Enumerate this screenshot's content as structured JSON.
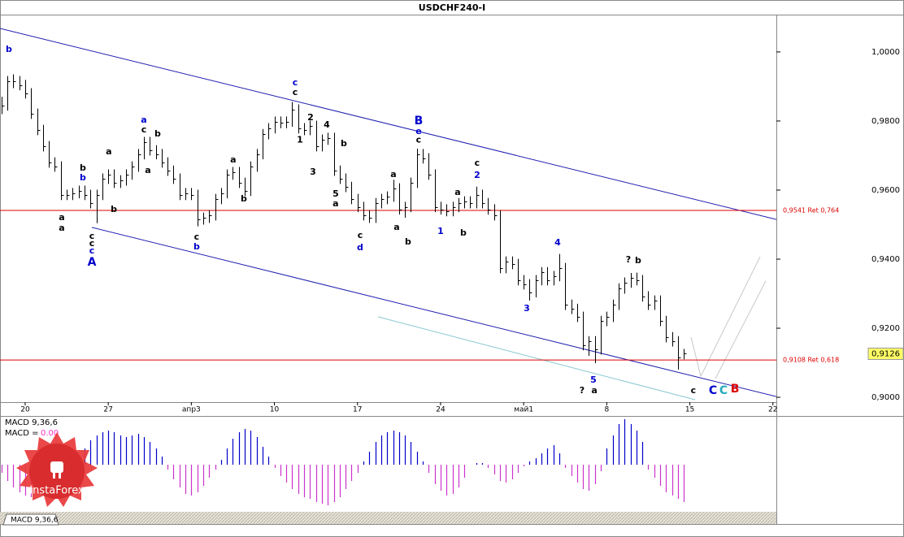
{
  "chart_data": {
    "type": "ohlc",
    "title": "USDCHF240-I",
    "xlim": [
      -1.12,
      64.29
    ],
    "xticks": [
      {
        "value": 1,
        "label": "20"
      },
      {
        "value": 8,
        "label": "27"
      },
      {
        "value": 15,
        "label": "апр3"
      },
      {
        "value": 22,
        "label": "10"
      },
      {
        "value": 29,
        "label": "17"
      },
      {
        "value": 36,
        "label": "24"
      },
      {
        "value": 43,
        "label": "май1"
      },
      {
        "value": 50,
        "label": "8"
      },
      {
        "value": 57,
        "label": "15"
      },
      {
        "value": 64,
        "label": "22"
      }
    ],
    "ylim": [
      0.8986,
      1.0108
    ],
    "yticks": [
      {
        "value": 0.9,
        "label": "0,9000"
      },
      {
        "value": 0.92,
        "label": "0,9200"
      },
      {
        "value": 0.94,
        "label": "0,9400"
      },
      {
        "value": 0.96,
        "label": "0,9600"
      },
      {
        "value": 0.98,
        "label": "0,9800"
      },
      {
        "value": 1.0,
        "label": "1,0000"
      }
    ],
    "color": "#000000",
    "x": [
      -1,
      -0.5,
      0,
      0.5,
      1,
      1.5,
      2,
      2.5,
      3,
      3.5,
      4,
      4.5,
      5,
      5.5,
      6,
      6.5,
      7,
      7.5,
      8,
      8.5,
      9,
      9.5,
      10,
      10.5,
      11,
      11.5,
      12,
      12.5,
      13,
      13.5,
      14,
      14.5,
      15,
      15.5,
      16,
      16.5,
      17,
      17.5,
      18,
      18.5,
      19,
      19.5,
      20,
      20.5,
      21,
      21.5,
      22,
      22.5,
      23,
      23.5,
      24,
      24.5,
      25,
      25.5,
      26,
      26.5,
      27,
      27.5,
      28,
      28.5,
      29,
      29.5,
      30,
      30.5,
      31,
      31.5,
      32,
      32.5,
      33,
      33.5,
      34,
      34.5,
      35,
      35.5,
      36,
      36.5,
      37,
      37.5,
      38,
      38.5,
      39,
      39.5,
      40,
      40.5,
      41,
      41.5,
      42,
      42.5,
      43,
      43.5,
      44,
      44.5,
      45,
      45.5,
      46,
      46.5,
      47,
      47.5,
      48,
      48.5,
      49,
      49.5,
      50,
      50.5,
      51,
      51.5,
      52,
      52.5,
      53,
      53.5,
      54,
      54.5,
      55,
      55.5,
      56,
      56.5
    ],
    "high": [
      0.987,
      0.993,
      0.9935,
      0.993,
      0.9919,
      0.9895,
      0.9836,
      0.9789,
      0.9742,
      0.9695,
      0.9683,
      0.9601,
      0.9606,
      0.9613,
      0.9613,
      0.9601,
      0.9601,
      0.9648,
      0.966,
      0.966,
      0.9643,
      0.966,
      0.9683,
      0.9719,
      0.9754,
      0.9754,
      0.973,
      0.9719,
      0.9695,
      0.9671,
      0.9648,
      0.9606,
      0.9606,
      0.9601,
      0.9535,
      0.9542,
      0.9589,
      0.9606,
      0.966,
      0.9667,
      0.9667,
      0.9636,
      0.9683,
      0.9719,
      0.9777,
      0.9794,
      0.9813,
      0.9813,
      0.9813,
      0.9855,
      0.9848,
      0.9794,
      0.9801,
      0.9801,
      0.9761,
      0.9766,
      0.9766,
      0.9671,
      0.9648,
      0.9624,
      0.9589,
      0.9566,
      0.9542,
      0.9577,
      0.9589,
      0.9596,
      0.963,
      0.962,
      0.9566,
      0.9636,
      0.972,
      0.9719,
      0.9707,
      0.966,
      0.9566,
      0.9559,
      0.9566,
      0.9577,
      0.9582,
      0.9582,
      0.961,
      0.9601,
      0.9577,
      0.9559,
      0.9542,
      0.9408,
      0.9408,
      0.9401,
      0.9354,
      0.9342,
      0.9354,
      0.9377,
      0.9377,
      0.9366,
      0.9415,
      0.9389,
      0.9283,
      0.9271,
      0.9248,
      0.9177,
      0.9177,
      0.9236,
      0.9248,
      0.9283,
      0.933,
      0.9347,
      0.936,
      0.9361,
      0.9354,
      0.9307,
      0.9295,
      0.9295,
      0.9236,
      0.9189,
      0.9177,
      0.914
    ],
    "low": [
      0.982,
      0.983,
      0.9895,
      0.9889,
      0.9865,
      0.9806,
      0.9759,
      0.9712,
      0.9665,
      0.9653,
      0.9571,
      0.9571,
      0.9571,
      0.9576,
      0.9571,
      0.9547,
      0.9504,
      0.9571,
      0.9618,
      0.9606,
      0.9606,
      0.9613,
      0.963,
      0.9653,
      0.9689,
      0.97,
      0.9689,
      0.9665,
      0.9641,
      0.9618,
      0.9571,
      0.9571,
      0.9571,
      0.9495,
      0.95,
      0.9505,
      0.9512,
      0.9559,
      0.9576,
      0.963,
      0.9606,
      0.9583,
      0.9583,
      0.9653,
      0.9689,
      0.9747,
      0.9764,
      0.9779,
      0.9779,
      0.9783,
      0.9764,
      0.9759,
      0.9759,
      0.9712,
      0.9712,
      0.9731,
      0.9641,
      0.9618,
      0.9594,
      0.9559,
      0.9536,
      0.9512,
      0.9505,
      0.9505,
      0.9547,
      0.9559,
      0.9566,
      0.9529,
      0.952,
      0.9536,
      0.9606,
      0.9677,
      0.963,
      0.9536,
      0.9529,
      0.9524,
      0.9524,
      0.9536,
      0.9547,
      0.9547,
      0.9547,
      0.9547,
      0.9529,
      0.9512,
      0.9359,
      0.9359,
      0.9371,
      0.9324,
      0.9312,
      0.928,
      0.9289,
      0.9324,
      0.9324,
      0.9324,
      0.9336,
      0.9253,
      0.9241,
      0.9218,
      0.9136,
      0.912,
      0.9099,
      0.9124,
      0.9206,
      0.9218,
      0.9253,
      0.93,
      0.9317,
      0.9324,
      0.9277,
      0.9253,
      0.9253,
      0.9206,
      0.9159,
      0.9147,
      0.908,
      0.911
    ],
    "close": [
      0.9845,
      0.9915,
      0.9915,
      0.9904,
      0.988,
      0.9821,
      0.9774,
      0.9727,
      0.968,
      0.9668,
      0.9586,
      0.9586,
      0.9591,
      0.9598,
      0.9586,
      0.9562,
      0.9586,
      0.9633,
      0.9645,
      0.9621,
      0.9628,
      0.9645,
      0.9668,
      0.9704,
      0.9739,
      0.9715,
      0.9704,
      0.968,
      0.9656,
      0.9633,
      0.9586,
      0.9591,
      0.9586,
      0.9515,
      0.952,
      0.9527,
      0.9574,
      0.9591,
      0.9645,
      0.9652,
      0.9621,
      0.9598,
      0.9668,
      0.9704,
      0.9762,
      0.9779,
      0.9798,
      0.9794,
      0.9798,
      0.9833,
      0.9779,
      0.9774,
      0.9786,
      0.9727,
      0.9746,
      0.9751,
      0.9656,
      0.9633,
      0.9609,
      0.9574,
      0.9551,
      0.9527,
      0.952,
      0.9562,
      0.9574,
      0.9581,
      0.9605,
      0.9544,
      0.9551,
      0.9621,
      0.9704,
      0.9692,
      0.9645,
      0.9551,
      0.9544,
      0.9539,
      0.9551,
      0.9562,
      0.9567,
      0.9562,
      0.9586,
      0.9562,
      0.9544,
      0.9527,
      0.9374,
      0.9393,
      0.9386,
      0.9339,
      0.9327,
      0.9304,
      0.9339,
      0.9362,
      0.9339,
      0.9351,
      0.9374,
      0.9268,
      0.9256,
      0.9233,
      0.9151,
      0.9162,
      0.9139,
      0.9221,
      0.9233,
      0.9268,
      0.9315,
      0.9332,
      0.9346,
      0.9339,
      0.9292,
      0.9268,
      0.928,
      0.9221,
      0.9174,
      0.9162,
      0.9115,
      0.9126
    ],
    "levels": [
      {
        "value": 0.9541,
        "label": "0,9541 Ret 0,764",
        "color": "#dd0000"
      },
      {
        "value": 0.9108,
        "label": "0,9108 Ret 0,618",
        "color": "#dd0000"
      }
    ],
    "last_price": {
      "value": 0.9126,
      "label": "0,9126"
    },
    "trendlines": [
      {
        "x": [
          -1.12,
          64.29
        ],
        "y": [
          1.0068,
          0.9515
        ],
        "color": "#2020b0"
      },
      {
        "x": [
          6.62,
          64.29
        ],
        "y": [
          0.9492,
          0.9002
        ],
        "color": "#2020b0"
      },
      {
        "x": [
          30.73,
          57.44
        ],
        "y": [
          0.9233,
          0.8993
        ],
        "color": "#88c8d0"
      },
      {
        "x": [
          57.1,
          57.92
        ],
        "y": [
          0.9174,
          0.9061
        ],
        "color": "#c8c8c8"
      },
      {
        "x": [
          57.92,
          62.92
        ],
        "y": [
          0.9061,
          0.9407
        ],
        "color": "#c8c8c8"
      },
      {
        "x": [
          59.15,
          63.4
        ],
        "y": [
          0.9054,
          0.9337
        ],
        "color": "#c8c8c8"
      }
    ],
    "annotations": [
      {
        "text": "b",
        "x": -0.37,
        "y": 1.0007,
        "color": "#0000cc"
      },
      {
        "text": "b",
        "x": 5.86,
        "y": 0.9664,
        "color": "#000000"
      },
      {
        "text": "b",
        "x": 5.86,
        "y": 0.9635,
        "color": "#0000cc"
      },
      {
        "text": "a",
        "x": 4.08,
        "y": 0.952,
        "color": "#000000"
      },
      {
        "text": "a",
        "x": 4.08,
        "y": 0.9489,
        "color": "#000000"
      },
      {
        "text": "c",
        "x": 6.62,
        "y": 0.9466,
        "color": "#000000"
      },
      {
        "text": "c",
        "x": 6.62,
        "y": 0.9445,
        "color": "#000000"
      },
      {
        "text": "c",
        "x": 6.62,
        "y": 0.9424,
        "color": "#0000cc"
      },
      {
        "text": "A",
        "x": 6.62,
        "y": 0.9391,
        "color": "#0000cc"
      },
      {
        "text": "a",
        "x": 8.05,
        "y": 0.9711,
        "color": "#000000"
      },
      {
        "text": "b",
        "x": 8.47,
        "y": 0.9544,
        "color": "#000000"
      },
      {
        "text": "a",
        "x": 11.0,
        "y": 0.9802,
        "color": "#0000cc"
      },
      {
        "text": "c",
        "x": 11.0,
        "y": 0.9774,
        "color": "#000000"
      },
      {
        "text": "b",
        "x": 12.16,
        "y": 0.9762,
        "color": "#000000"
      },
      {
        "text": "a",
        "x": 11.34,
        "y": 0.9656,
        "color": "#000000"
      },
      {
        "text": "c",
        "x": 15.45,
        "y": 0.9464,
        "color": "#000000"
      },
      {
        "text": "b",
        "x": 15.45,
        "y": 0.9435,
        "color": "#0000cc"
      },
      {
        "text": "a",
        "x": 18.53,
        "y": 0.9687,
        "color": "#000000"
      },
      {
        "text": "b",
        "x": 19.42,
        "y": 0.9574,
        "color": "#000000"
      },
      {
        "text": "c",
        "x": 23.74,
        "y": 0.9911,
        "color": "#0000cc"
      },
      {
        "text": "c",
        "x": 23.74,
        "y": 0.9882,
        "color": "#000000"
      },
      {
        "text": "2",
        "x": 25.04,
        "y": 0.9809,
        "color": "#000000"
      },
      {
        "text": "1",
        "x": 24.15,
        "y": 0.9744,
        "color": "#000000"
      },
      {
        "text": "4",
        "x": 26.41,
        "y": 0.9788,
        "color": "#000000"
      },
      {
        "text": "3",
        "x": 25.25,
        "y": 0.9652,
        "color": "#000000"
      },
      {
        "text": "b",
        "x": 27.85,
        "y": 0.9734,
        "color": "#000000"
      },
      {
        "text": "5",
        "x": 27.16,
        "y": 0.9588,
        "color": "#000000"
      },
      {
        "text": "a",
        "x": 27.16,
        "y": 0.956,
        "color": "#000000"
      },
      {
        "text": "c",
        "x": 29.22,
        "y": 0.9468,
        "color": "#000000"
      },
      {
        "text": "d",
        "x": 29.22,
        "y": 0.9433,
        "color": "#0000cc"
      },
      {
        "text": "a",
        "x": 32.03,
        "y": 0.9645,
        "color": "#000000"
      },
      {
        "text": "a",
        "x": 32.3,
        "y": 0.9492,
        "color": "#000000"
      },
      {
        "text": "b",
        "x": 33.26,
        "y": 0.9449,
        "color": "#000000"
      },
      {
        "text": "B",
        "x": 34.15,
        "y": 0.98,
        "color": "#0000cc"
      },
      {
        "text": "e",
        "x": 34.15,
        "y": 0.9769,
        "color": "#0000cc"
      },
      {
        "text": "c",
        "x": 34.15,
        "y": 0.9744,
        "color": "#000000"
      },
      {
        "text": "1",
        "x": 36.0,
        "y": 0.948,
        "color": "#0000cc"
      },
      {
        "text": "a",
        "x": 37.44,
        "y": 0.9593,
        "color": "#000000"
      },
      {
        "text": "c",
        "x": 39.08,
        "y": 0.9678,
        "color": "#000000"
      },
      {
        "text": "2",
        "x": 39.08,
        "y": 0.9642,
        "color": "#0000cc"
      },
      {
        "text": "b",
        "x": 37.92,
        "y": 0.9475,
        "color": "#000000"
      },
      {
        "text": "4",
        "x": 45.86,
        "y": 0.9447,
        "color": "#0000cc"
      },
      {
        "text": "3",
        "x": 43.26,
        "y": 0.9256,
        "color": "#0000cc"
      },
      {
        "text": "5",
        "x": 48.88,
        "y": 0.9049,
        "color": "#0000cc"
      },
      {
        "text": "?",
        "x": 47.92,
        "y": 0.9019,
        "color": "#000000"
      },
      {
        "text": "a",
        "x": 48.95,
        "y": 0.9019,
        "color": "#000000"
      },
      {
        "text": "?",
        "x": 51.82,
        "y": 0.9398,
        "color": "#000000"
      },
      {
        "text": "b",
        "x": 52.64,
        "y": 0.9395,
        "color": "#000000"
      },
      {
        "text": "c",
        "x": 57.3,
        "y": 0.9019,
        "color": "#000000"
      },
      {
        "text": "C",
        "x": 58.95,
        "y": 0.9019,
        "color": "#0000cc"
      },
      {
        "text": "C",
        "x": 59.84,
        "y": 0.9019,
        "color": "#22aabb"
      },
      {
        "text": "B",
        "x": 60.8,
        "y": 0.9024,
        "color": "#dd0000"
      }
    ],
    "macd": {
      "title": "MACD 9,36,6",
      "value_prefix": "MACD =",
      "value_text": "0.00",
      "tab_label": "MACD 9,36,6",
      "ylim": [
        -0.0058,
        0.0059
      ],
      "positive_color": "#0000cc",
      "negative_color": "#cc33cc",
      "values": [
        -0.001,
        -0.002,
        -0.0028,
        -0.0034,
        -0.0038,
        -0.004,
        -0.0038,
        -0.0032,
        -0.0025,
        -0.0018,
        -0.001,
        -0.0004,
        0.0004,
        0.0012,
        0.002,
        0.003,
        0.0036,
        0.004,
        0.0042,
        0.004,
        0.0036,
        0.0034,
        0.0036,
        0.0038,
        0.0034,
        0.0028,
        0.002,
        0.001,
        -0.0006,
        -0.0018,
        -0.0028,
        -0.0036,
        -0.0038,
        -0.0034,
        -0.0026,
        -0.0016,
        -0.0006,
        0.0006,
        0.002,
        0.0032,
        0.004,
        0.0044,
        0.0042,
        0.0034,
        0.0022,
        0.001,
        -0.0004,
        -0.0014,
        -0.0022,
        -0.003,
        -0.0036,
        -0.004,
        -0.0042,
        -0.0046,
        -0.0048,
        -0.005,
        -0.0046,
        -0.004,
        -0.003,
        -0.002,
        -0.001,
        0.0004,
        0.0016,
        0.0028,
        0.0036,
        0.004,
        0.0042,
        0.004,
        0.0036,
        0.0028,
        0.0016,
        0.0004,
        -0.001,
        -0.0024,
        -0.0032,
        -0.0038,
        -0.0036,
        -0.0028,
        -0.0016,
        0,
        0.0002,
        0.0002,
        -0.0004,
        -0.0012,
        -0.002,
        -0.0022,
        -0.0018,
        -0.001,
        -0.0002,
        0.0004,
        0.0008,
        0.0014,
        0.002,
        0.0024,
        0.0014,
        -0.0004,
        -0.0014,
        -0.0022,
        -0.003,
        -0.0032,
        -0.0024,
        -0.0008,
        0.002,
        0.0036,
        0.005,
        0.0056,
        0.005,
        0.0042,
        0.0028,
        -0.0006,
        -0.0016,
        -0.0026,
        -0.0034,
        -0.0038,
        -0.0042,
        -0.0046
      ]
    },
    "logo": "InstaForex"
  }
}
